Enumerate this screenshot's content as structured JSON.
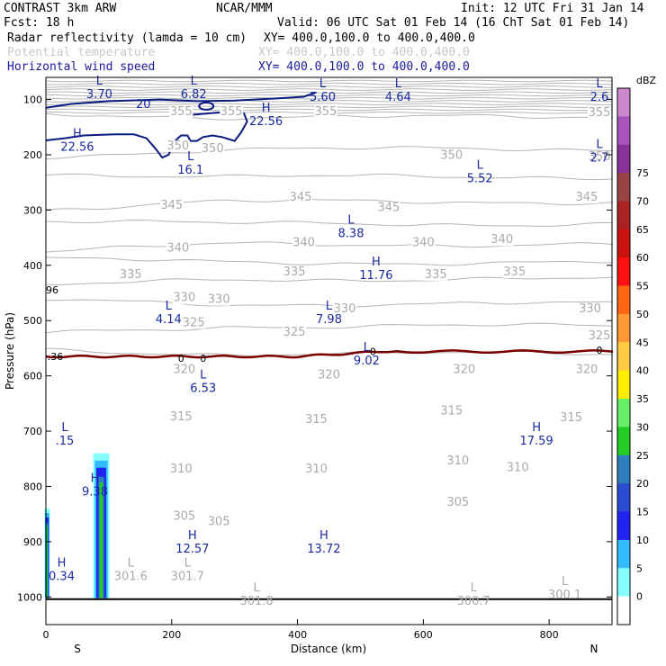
{
  "header": {
    "line1_left": "CONTRAST  3km ARW",
    "line1_mid": "NCAR/MMM",
    "line1_right": "Init: 12 UTC Fri 31 Jan 14",
    "line2_left": "Fcst:    18 h",
    "line2_right": "Valid: 06 UTC Sat 01 Feb 14 (16 ChT Sat 01 Feb 14)",
    "fields": [
      {
        "name": "Radar reflectivity (lamda = 10 cm)",
        "xy": "XY= 400.0,100.0 to 400.0,400.0",
        "color": "#000000"
      },
      {
        "name": "Potential temperature",
        "xy": "XY= 400.0,100.0 to 400.0,400.0",
        "color": "#c8c8c8"
      },
      {
        "name": "Horizontal wind speed",
        "xy": "XY= 400.0,100.0 to 400.0,400.0",
        "color": "#1a1a99"
      }
    ]
  },
  "chart_data": {
    "type": "contour-cross-section",
    "xlabel": "Distance (km)",
    "ylabel": "Pressure (hPa)",
    "xlim": [
      0,
      900
    ],
    "ylim": [
      1050,
      60
    ],
    "xticks": [
      0,
      200,
      400,
      600,
      800
    ],
    "yticks": [
      100,
      200,
      300,
      400,
      500,
      600,
      700,
      800,
      900,
      1000
    ],
    "end_labels": {
      "left": "S",
      "right": "N"
    },
    "colorbar": {
      "unit": "dBZ",
      "levels": [
        0,
        5,
        10,
        15,
        20,
        25,
        30,
        35,
        40,
        45,
        50,
        55,
        60,
        65,
        70,
        75
      ],
      "colors": [
        "#ffffff",
        "#88ffff",
        "#33bbff",
        "#2222ee",
        "#2a4ad0",
        "#2e7fbf",
        "#22cc22",
        "#66ee66",
        "#ffee00",
        "#ffcc44",
        "#ff9933",
        "#ff6611",
        "#ff1111",
        "#cc1111",
        "#aa2222",
        "#994444",
        "#883399",
        "#aa55bb",
        "#cc88cc"
      ]
    },
    "theta_contours": [
      {
        "value": 355,
        "p": 132
      },
      {
        "value": 350,
        "p": 190
      },
      {
        "value": 345,
        "p": 240
      },
      {
        "value": 340,
        "p": 285
      },
      {
        "value": 335,
        "p": 325
      },
      {
        "value": 330,
        "p": 362
      },
      {
        "value": 325,
        "p": 395
      },
      {
        "value": 320,
        "p": 425
      },
      {
        "value": 315,
        "p": 470
      },
      {
        "value": 310,
        "p": 510
      },
      {
        "value": 305,
        "p": 560
      }
    ],
    "theta_labels": [
      {
        "text": "355",
        "x": 215,
        "p": 128
      },
      {
        "text": "355",
        "x": 295,
        "p": 128
      },
      {
        "text": "355",
        "x": 445,
        "p": 128
      },
      {
        "text": "355",
        "x": 880,
        "p": 130
      },
      {
        "text": "350",
        "x": 210,
        "p": 190
      },
      {
        "text": "350",
        "x": 265,
        "p": 195
      },
      {
        "text": "350",
        "x": 645,
        "p": 207
      },
      {
        "text": "350",
        "x": 880,
        "p": 210
      },
      {
        "text": "345",
        "x": 200,
        "p": 298
      },
      {
        "text": "345",
        "x": 405,
        "p": 283
      },
      {
        "text": "345",
        "x": 545,
        "p": 302
      },
      {
        "text": "345",
        "x": 860,
        "p": 283
      },
      {
        "text": "340",
        "x": 210,
        "p": 375
      },
      {
        "text": "340",
        "x": 410,
        "p": 365
      },
      {
        "text": "340",
        "x": 600,
        "p": 365
      },
      {
        "text": "340",
        "x": 725,
        "p": 360
      },
      {
        "text": "335",
        "x": 135,
        "p": 423
      },
      {
        "text": "335",
        "x": 395,
        "p": 418
      },
      {
        "text": "335",
        "x": 620,
        "p": 423
      },
      {
        "text": "335",
        "x": 745,
        "p": 418
      },
      {
        "text": "330",
        "x": 220,
        "p": 465
      },
      {
        "text": "330",
        "x": 275,
        "p": 468
      },
      {
        "text": "330",
        "x": 475,
        "p": 485
      },
      {
        "text": "330",
        "x": 865,
        "p": 485
      },
      {
        "text": "325",
        "x": 235,
        "p": 510
      },
      {
        "text": "325",
        "x": 395,
        "p": 527
      },
      {
        "text": "325",
        "x": 880,
        "p": 534
      },
      {
        "text": "320",
        "x": 220,
        "p": 595
      },
      {
        "text": "320",
        "x": 450,
        "p": 605
      },
      {
        "text": "320",
        "x": 665,
        "p": 595
      },
      {
        "text": "320",
        "x": 860,
        "p": 595
      },
      {
        "text": "315",
        "x": 215,
        "p": 680
      },
      {
        "text": "315",
        "x": 430,
        "p": 685
      },
      {
        "text": "315",
        "x": 645,
        "p": 670
      },
      {
        "text": "315",
        "x": 835,
        "p": 682
      },
      {
        "text": "310",
        "x": 215,
        "p": 775
      },
      {
        "text": "310",
        "x": 430,
        "p": 775
      },
      {
        "text": "310",
        "x": 655,
        "p": 760
      },
      {
        "text": "310",
        "x": 750,
        "p": 772
      },
      {
        "text": "305",
        "x": 220,
        "p": 860
      },
      {
        "text": "305",
        "x": 275,
        "p": 870
      },
      {
        "text": "305",
        "x": 655,
        "p": 835
      }
    ],
    "theta_extremes": [
      {
        "kind": "L",
        "value": "301.6",
        "x": 135,
        "p": 945
      },
      {
        "kind": "L",
        "value": "301.7",
        "x": 225,
        "p": 945
      },
      {
        "kind": "L",
        "value": "301.8",
        "x": 335,
        "p": 990
      },
      {
        "kind": "L",
        "value": "300.7",
        "x": 680,
        "p": 990
      },
      {
        "kind": "L",
        "value": "300.1",
        "x": 825,
        "p": 978
      }
    ],
    "wind_extremes": [
      {
        "kind": "L",
        "value": "3.70",
        "x": 85,
        "p": 73
      },
      {
        "kind": "L",
        "value": "6.82",
        "x": 235,
        "p": 73
      },
      {
        "kind": "L",
        "value": "5.60",
        "x": 440,
        "p": 78
      },
      {
        "kind": "L",
        "value": "4.64",
        "x": 560,
        "p": 78
      },
      {
        "kind": "L",
        "value": "2.6",
        "x": 880,
        "p": 78
      },
      {
        "kind": "H",
        "value": "22.56",
        "x": 50,
        "p": 168
      },
      {
        "kind": "H",
        "value": "22.56",
        "x": 350,
        "p": 122
      },
      {
        "kind": "L",
        "value": "16.1",
        "x": 230,
        "p": 210
      },
      {
        "kind": "L",
        "value": "2.7",
        "x": 880,
        "p": 188
      },
      {
        "kind": "L",
        "value": "5.52",
        "x": 690,
        "p": 225
      },
      {
        "kind": "L",
        "value": "8.38",
        "x": 485,
        "p": 325
      },
      {
        "kind": "H",
        "value": "11.76",
        "x": 525,
        "p": 400
      },
      {
        "kind": "L",
        "value": "4.14",
        "x": 195,
        "p": 480
      },
      {
        "kind": "L",
        "value": "7.98",
        "x": 450,
        "p": 480
      },
      {
        "kind": "L",
        "value": "9.02",
        "x": 510,
        "p": 555
      },
      {
        "kind": "L",
        "value": "6.53",
        "x": 250,
        "p": 605
      },
      {
        "kind": "L",
        "value": ".15",
        "x": 30,
        "p": 700
      },
      {
        "kind": "H",
        "value": "17.59",
        "x": 780,
        "p": 700
      },
      {
        "kind": "H",
        "value": "9.38",
        "x": 78,
        "p": 792
      },
      {
        "kind": "H",
        "value": "12.57",
        "x": 233,
        "p": 895
      },
      {
        "kind": "H",
        "value": "13.72",
        "x": 442,
        "p": 895
      },
      {
        "kind": "H",
        "value": "0.34",
        "x": 25,
        "p": 945
      }
    ],
    "wind_contour": {
      "value": "20",
      "label_x": 155,
      "label_p": 115
    },
    "zero_line_labels": [
      {
        "text": ".36",
        "x": 15,
        "p": 565
      },
      {
        "text": "0",
        "x": 215,
        "p": 568
      },
      {
        "text": "0",
        "x": 250,
        "p": 568
      },
      {
        "text": "0",
        "x": 520,
        "p": 556
      },
      {
        "text": "0",
        "x": 880,
        "p": 553
      },
      {
        "text": "96",
        "x": 10,
        "p": 444
      }
    ]
  }
}
